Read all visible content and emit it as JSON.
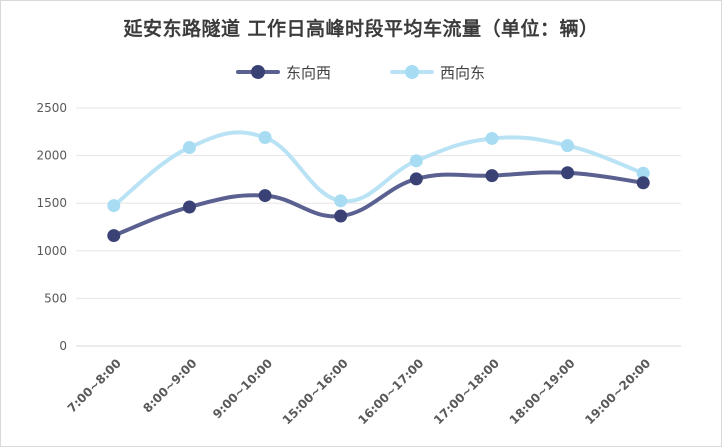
{
  "colors": {
    "east_to_west": "#3a4275",
    "east_to_west_line": "#5a6190",
    "west_to_east": "#a8dcf2",
    "west_to_east_line": "#b9e3f5",
    "grid": "#e6e6e6",
    "text": "#595959"
  },
  "chart_data": {
    "type": "line",
    "title": "延安东路隧道 工作日高峰时段平均车流量（单位：辆）",
    "categories": [
      "7:00~8:00",
      "8:00~9:00",
      "9:00~10:00",
      "15:00~16:00",
      "16:00~17:00",
      "17:00~18:00",
      "18:00~19:00",
      "19:00~20:00"
    ],
    "series": [
      {
        "name": "东向西",
        "values": [
          1160,
          1460,
          1580,
          1365,
          1755,
          1790,
          1820,
          1715
        ]
      },
      {
        "name": "西向东",
        "values": [
          1475,
          2085,
          2190,
          1525,
          1945,
          2180,
          2105,
          1815
        ]
      }
    ],
    "yticks": [
      "0",
      "500",
      "1000",
      "1500",
      "2000",
      "2500"
    ],
    "ylim": [
      0,
      2500
    ],
    "grid": true,
    "legend_position": "top"
  }
}
